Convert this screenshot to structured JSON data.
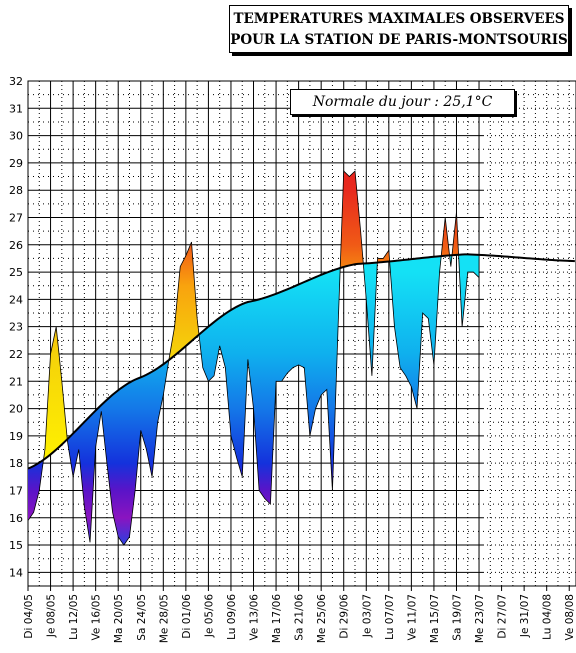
{
  "title": {
    "line1": "TEMPERATURES MAXIMALES OBSERVEES",
    "line2": "POUR LA STATION DE PARIS-MONTSOURIS"
  },
  "normale_label": "Normale du jour : 25,1°C",
  "chart_data": {
    "type": "area",
    "title": "TEMPERATURES MAXIMALES OBSERVEES POUR LA STATION DE PARIS-MONTSOURIS",
    "xlabel": "",
    "ylabel": "",
    "ylim": [
      13.5,
      32
    ],
    "yticks": [
      14,
      15,
      16,
      17,
      18,
      19,
      20,
      21,
      22,
      23,
      24,
      25,
      26,
      27,
      28,
      29,
      30,
      31,
      32
    ],
    "x_tick_labels": [
      "Di 04/05",
      "Je 08/05",
      "Lu 12/05",
      "Ve 16/05",
      "Ma 20/05",
      "Sa 24/05",
      "Me 28/05",
      "Di 01/06",
      "Je 05/06",
      "Lu 09/06",
      "Ve 13/06",
      "Ma 17/06",
      "Sa 21/06",
      "Me 25/06",
      "Di 29/06",
      "Je 03/07",
      "Lu 07/07",
      "Ve 11/07",
      "Ma 15/07",
      "Sa 19/07",
      "Me 23/07",
      "Di 27/07",
      "Je 31/07",
      "Lu 04/08",
      "Ve 08/08"
    ],
    "grid": true,
    "observed_day_range": [
      0,
      80.7
    ],
    "series": [
      {
        "values": [
          15.9,
          16.2,
          17.0,
          18.5,
          22.0,
          23.0,
          21.0,
          18.8,
          17.5,
          18.5,
          16.4,
          15.1,
          18.6,
          19.9,
          18.0,
          16.2,
          15.3,
          15.0,
          15.3,
          17.0,
          19.2,
          18.5,
          17.5,
          19.5,
          20.5,
          21.8,
          23.0,
          25.2,
          25.6,
          26.1,
          23.3,
          21.5,
          21.0,
          21.2,
          22.3,
          21.5,
          19.0,
          18.2,
          17.5,
          21.8,
          20.0,
          17.0,
          16.7,
          16.5,
          21.0,
          21.0,
          21.3,
          21.5,
          21.6,
          21.5,
          19.0,
          20.0,
          20.5,
          20.7,
          17.0,
          23.0,
          28.7,
          28.5,
          28.7,
          26.5,
          24.0,
          21.2,
          25.5,
          25.5,
          25.8,
          23.0,
          21.5,
          21.2,
          20.8,
          20.0,
          23.5,
          23.3,
          21.6,
          25.0,
          27.0,
          25.2,
          27.2,
          23.0,
          25.0,
          25.0,
          24.8
        ]
      },
      {
        "values": [
          17.8,
          21.1,
          23.9,
          25.3,
          25.65,
          25.4
        ]
      }
    ]
  }
}
